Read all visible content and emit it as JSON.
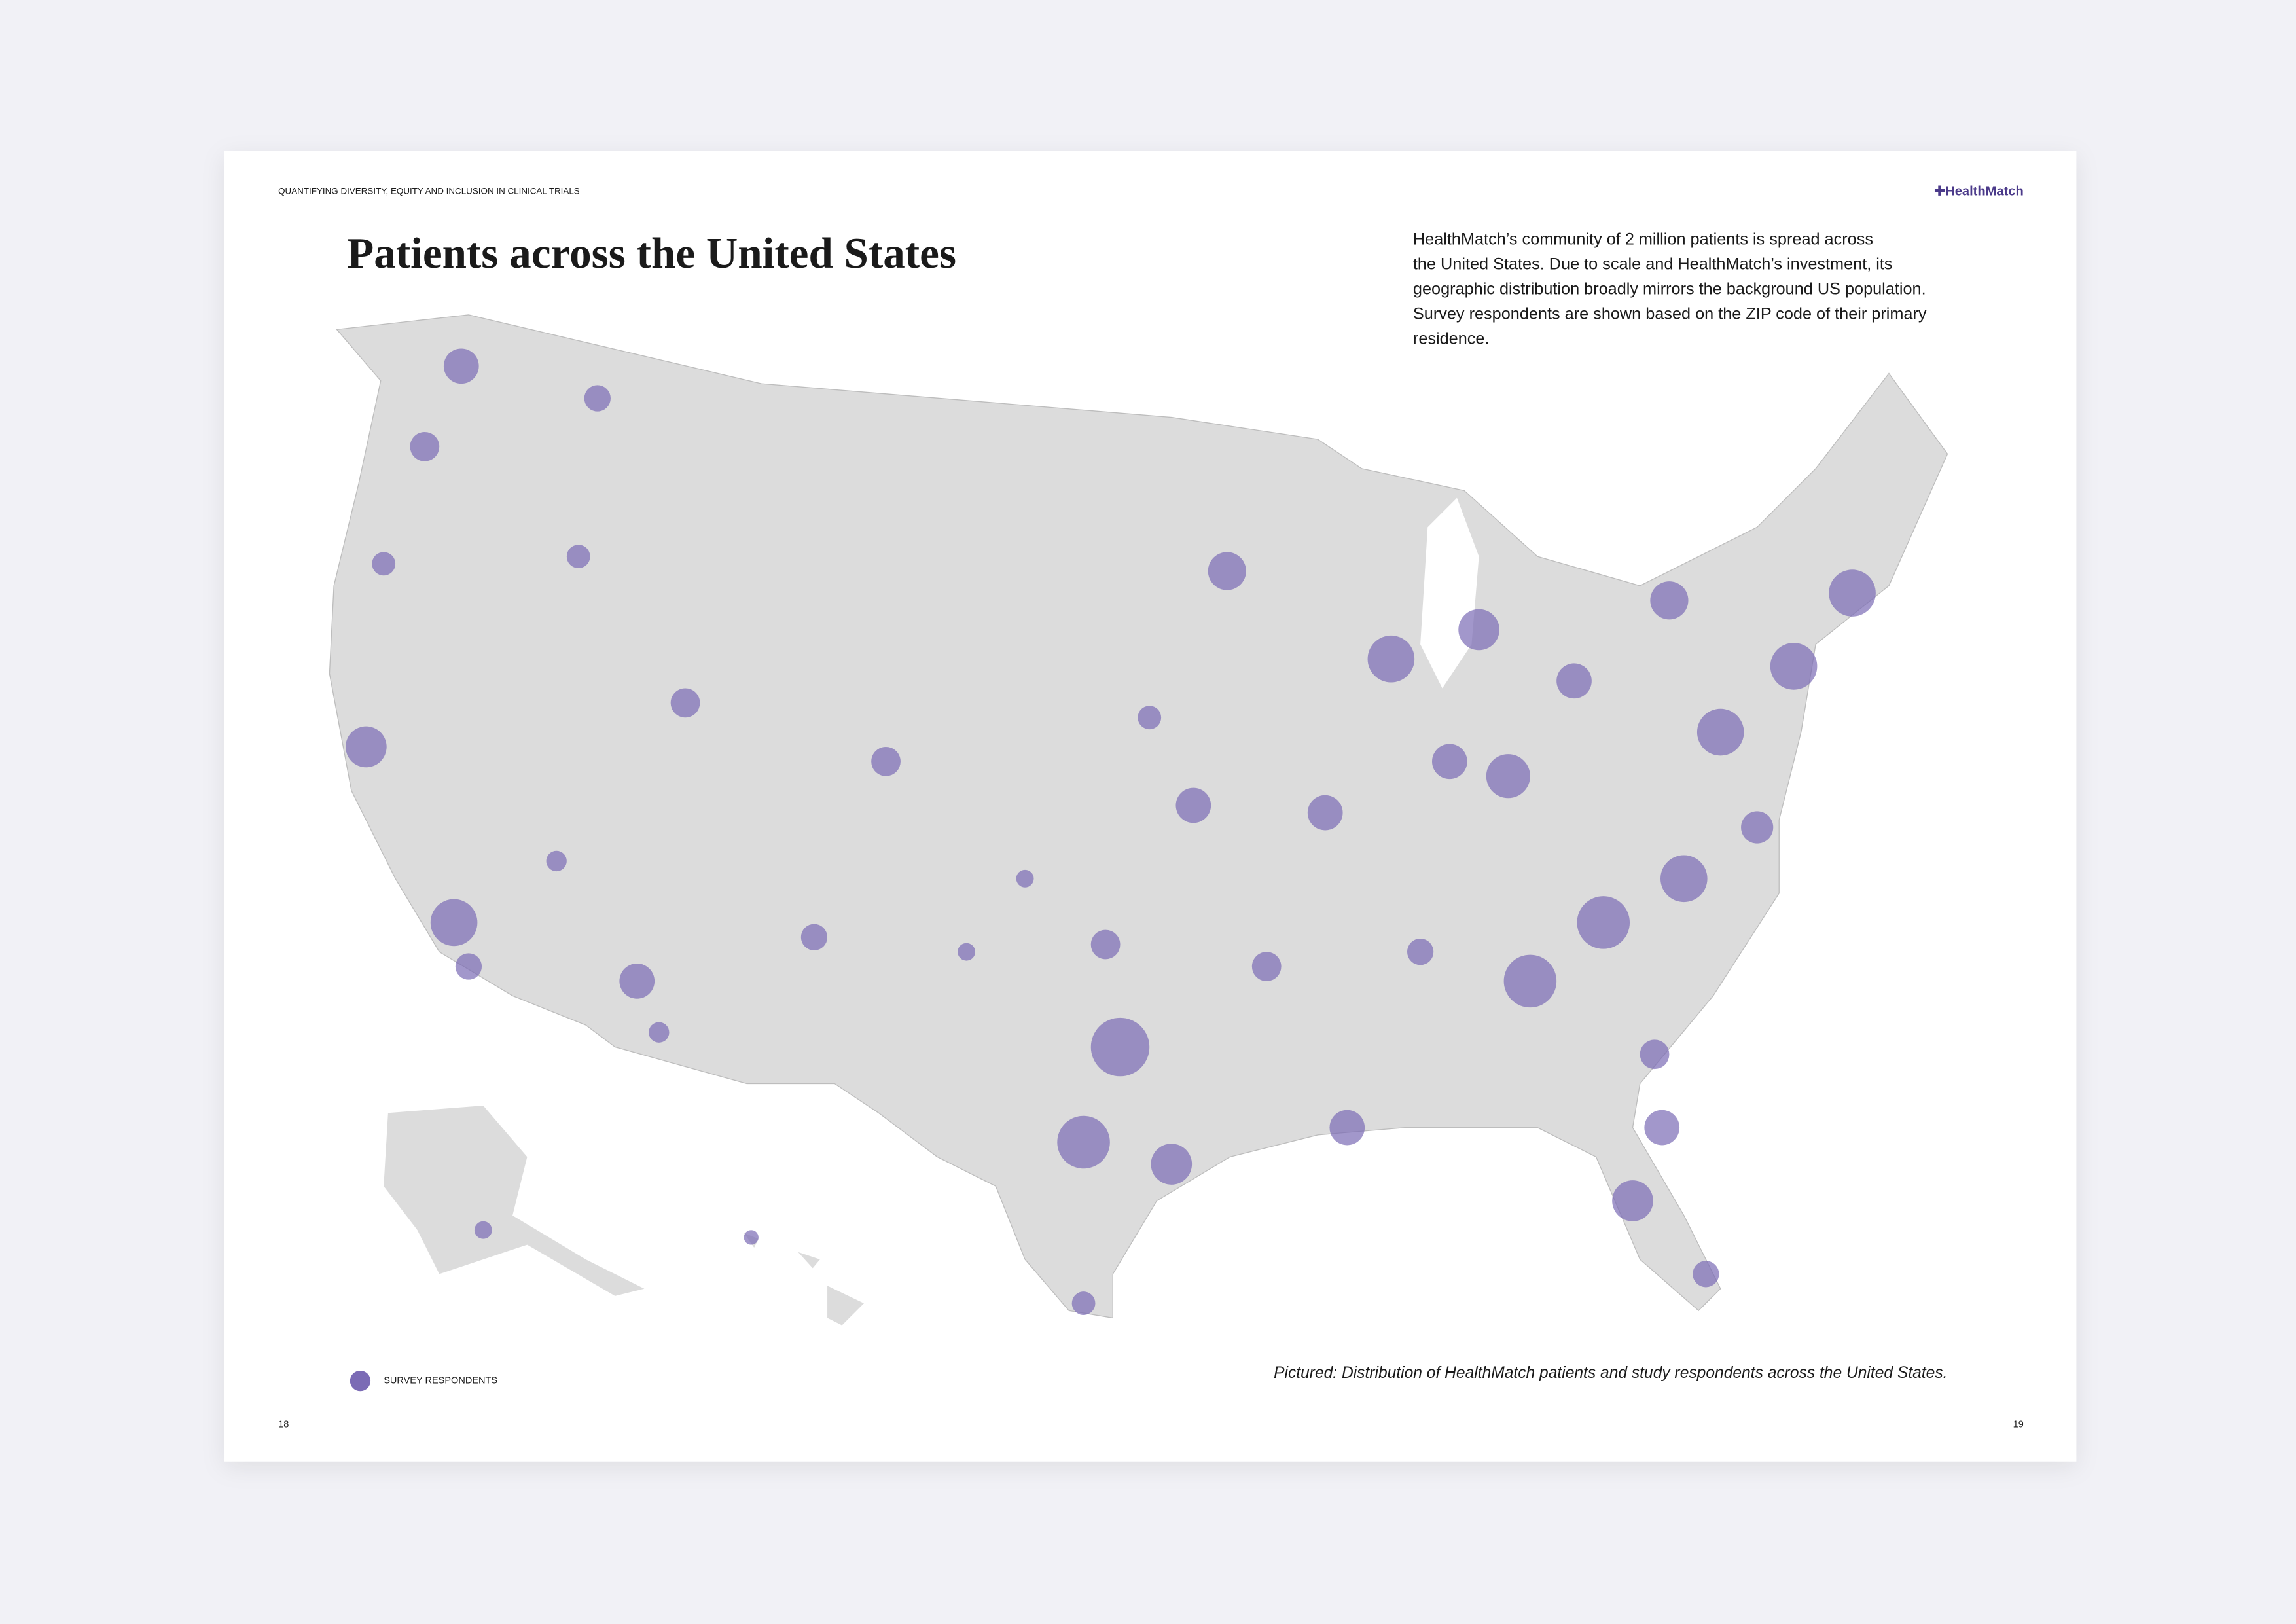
{
  "header": {
    "running_title": "QUANTIFYING DIVERSITY, EQUITY AND INCLUSION IN CLINICAL TRIALS",
    "logo": "✚HealthMatch"
  },
  "title": "Patients across the United States",
  "body": {
    "lines": [
      "HealthMatch’s community of 2 million patients  is spread across",
      "the United States. Due to scale and HealthMatch’s investment, its",
      "geographic distribution broadly mirrors the background US population.",
      "Survey respondents are shown based on the ZIP code of their primary",
      "residence."
    ]
  },
  "legend": {
    "label": "SURVEY RESPONDENTS"
  },
  "caption": "Pictured: Distribution of HealthMatch patients and study respondents across the United States.",
  "footer": {
    "left_page": "18",
    "right_page": "19"
  }
}
